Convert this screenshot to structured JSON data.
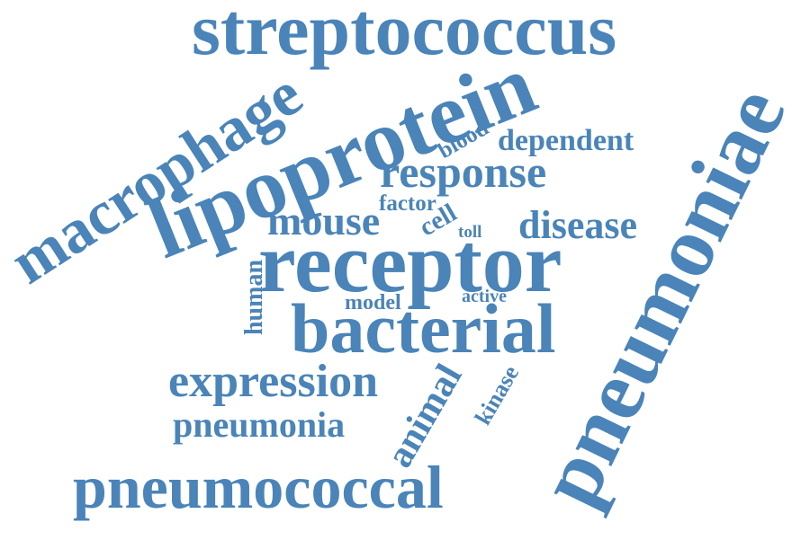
{
  "color": "#4A84B8",
  "words": [
    {
      "text": "streptococcus"
    },
    {
      "text": "pneumoniae"
    },
    {
      "text": "lipoprotein"
    },
    {
      "text": "macrophage"
    },
    {
      "text": "receptor"
    },
    {
      "text": "bacterial"
    },
    {
      "text": "response"
    },
    {
      "text": "dependent"
    },
    {
      "text": "blood"
    },
    {
      "text": "factor"
    },
    {
      "text": "mouse"
    },
    {
      "text": "cell"
    },
    {
      "text": "toll"
    },
    {
      "text": "disease"
    },
    {
      "text": "human"
    },
    {
      "text": "model"
    },
    {
      "text": "active"
    },
    {
      "text": "expression"
    },
    {
      "text": "pneumonia"
    },
    {
      "text": "animal"
    },
    {
      "text": "kinase"
    },
    {
      "text": "pneumococcal"
    }
  ]
}
